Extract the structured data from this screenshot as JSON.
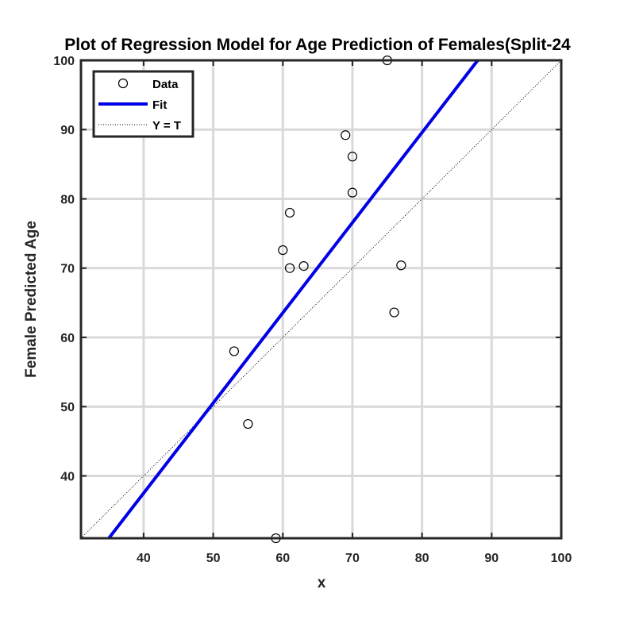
{
  "chart_data": {
    "type": "scatter",
    "title": "Plot of Regression Model for Age Prediction of Females(Split-24",
    "xlabel": "x",
    "ylabel": "Female Predicted Age",
    "xlim": [
      31,
      100
    ],
    "ylim": [
      31,
      100
    ],
    "xticks": [
      40,
      50,
      60,
      70,
      80,
      90,
      100
    ],
    "yticks": [
      40,
      50,
      60,
      70,
      80,
      90,
      100
    ],
    "grid": true,
    "legend_position": "top-left",
    "legend": [
      {
        "label": "Data",
        "style": "circle-marker"
      },
      {
        "label": "Fit",
        "style": "solid-line"
      },
      {
        "label": "Y = T",
        "style": "dotted-line"
      }
    ],
    "series": [
      {
        "name": "Data",
        "points": [
          {
            "x": 53,
            "y": 58
          },
          {
            "x": 55,
            "y": 47.5
          },
          {
            "x": 59,
            "y": 31
          },
          {
            "x": 60,
            "y": 72.6
          },
          {
            "x": 61,
            "y": 78
          },
          {
            "x": 61,
            "y": 70
          },
          {
            "x": 63,
            "y": 70.3
          },
          {
            "x": 69,
            "y": 89.2
          },
          {
            "x": 70,
            "y": 86.1
          },
          {
            "x": 70,
            "y": 80.9
          },
          {
            "x": 75,
            "y": 100
          },
          {
            "x": 76,
            "y": 63.6
          },
          {
            "x": 77,
            "y": 70.4
          }
        ]
      },
      {
        "name": "Fit",
        "line": [
          {
            "x": 35,
            "y": 31
          },
          {
            "x": 88,
            "y": 100
          }
        ]
      },
      {
        "name": "Y = T",
        "line": [
          {
            "x": 31,
            "y": 31
          },
          {
            "x": 100,
            "y": 100
          }
        ]
      }
    ],
    "colors": {
      "fit": "#0000e6",
      "identity": "#000000",
      "markers": "#000000",
      "grid": "#d9d9d9",
      "axes": "#262626"
    }
  }
}
